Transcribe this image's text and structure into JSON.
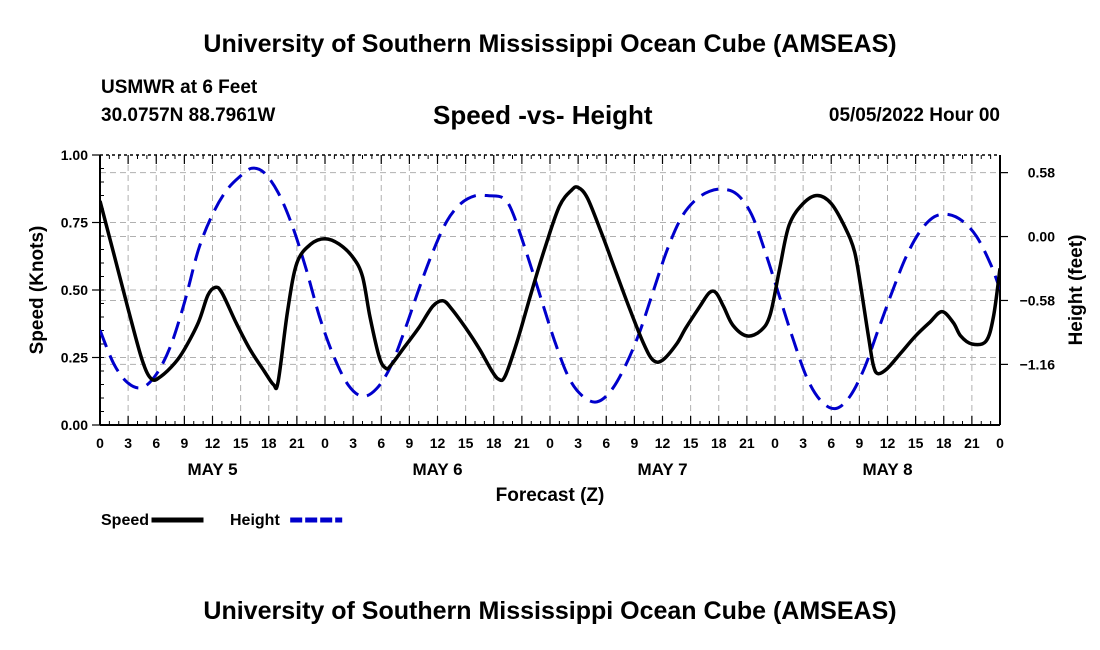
{
  "header": {
    "title": "University of Southern Mississippi Ocean Cube (AMSEAS)",
    "station": "USMWR at 6 Feet",
    "coords": "30.0757N  88.7961W",
    "subtitle": "Speed -vs- Height",
    "datetime": "05/05/2022 Hour 00"
  },
  "footer": {
    "title": "University of Southern Mississippi Ocean Cube (AMSEAS)"
  },
  "chart_data": {
    "type": "line",
    "xlabel": "Forecast (Z)",
    "ylabel": "Speed (Knots)",
    "y2label": "Height (feet)",
    "xlim": [
      0,
      96
    ],
    "ylim": [
      0,
      1
    ],
    "y2lim": [
      -1.71,
      0.74
    ],
    "x_tick_step": 3,
    "x_ticks": [
      "0",
      "3",
      "6",
      "9",
      "12",
      "15",
      "18",
      "21",
      "0",
      "3",
      "6",
      "9",
      "12",
      "15",
      "18",
      "21",
      "0",
      "3",
      "6",
      "9",
      "12",
      "15",
      "18",
      "21",
      "0",
      "3",
      "6",
      "9",
      "12",
      "15",
      "18",
      "21",
      "0"
    ],
    "day_labels": [
      {
        "label": "MAY 5",
        "x": 12
      },
      {
        "label": "MAY 6",
        "x": 36
      },
      {
        "label": "MAY 7",
        "x": 60
      },
      {
        "label": "MAY 8",
        "x": 84
      }
    ],
    "y_ticks": [
      "0.00",
      "0.25",
      "0.50",
      "0.75",
      "1.00"
    ],
    "y2_ticks": [
      {
        "label": "0.58",
        "value": 0.58
      },
      {
        "label": "0.00",
        "value": 0.0
      },
      {
        "label": "−0.58",
        "value": -0.58
      },
      {
        "label": "−1.16",
        "value": -1.16
      }
    ],
    "grid": true,
    "legend_position": "bottom-left",
    "series": [
      {
        "name": "Speed",
        "axis": "left",
        "color": "#000000",
        "dash": "solid",
        "points": [
          [
            0,
            0.83
          ],
          [
            1.5,
            0.63
          ],
          [
            3,
            0.43
          ],
          [
            4.5,
            0.24
          ],
          [
            5.5,
            0.17
          ],
          [
            6.5,
            0.18
          ],
          [
            8,
            0.23
          ],
          [
            9,
            0.28
          ],
          [
            10.5,
            0.38
          ],
          [
            11.5,
            0.48
          ],
          [
            12.3,
            0.51
          ],
          [
            13,
            0.49
          ],
          [
            14.5,
            0.38
          ],
          [
            16,
            0.28
          ],
          [
            17.5,
            0.2
          ],
          [
            18.5,
            0.15
          ],
          [
            19,
            0.16
          ],
          [
            20,
            0.42
          ],
          [
            21,
            0.6
          ],
          [
            22.5,
            0.67
          ],
          [
            24,
            0.69
          ],
          [
            25.5,
            0.67
          ],
          [
            27,
            0.62
          ],
          [
            28,
            0.55
          ],
          [
            28.8,
            0.4
          ],
          [
            29.8,
            0.25
          ],
          [
            30.5,
            0.21
          ],
          [
            31,
            0.22
          ],
          [
            32.5,
            0.29
          ],
          [
            34,
            0.36
          ],
          [
            35.5,
            0.44
          ],
          [
            36.6,
            0.46
          ],
          [
            37.5,
            0.43
          ],
          [
            39,
            0.36
          ],
          [
            40.5,
            0.28
          ],
          [
            41.8,
            0.2
          ],
          [
            42.5,
            0.17
          ],
          [
            43.2,
            0.18
          ],
          [
            44.5,
            0.31
          ],
          [
            46,
            0.49
          ],
          [
            47.5,
            0.66
          ],
          [
            49,
            0.81
          ],
          [
            50.3,
            0.87
          ],
          [
            51,
            0.88
          ],
          [
            52,
            0.84
          ],
          [
            53.5,
            0.71
          ],
          [
            55,
            0.57
          ],
          [
            56.5,
            0.43
          ],
          [
            58,
            0.3
          ],
          [
            59,
            0.24
          ],
          [
            60,
            0.24
          ],
          [
            61.5,
            0.3
          ],
          [
            62.5,
            0.36
          ],
          [
            64,
            0.44
          ],
          [
            65,
            0.49
          ],
          [
            65.7,
            0.49
          ],
          [
            66.5,
            0.44
          ],
          [
            67.5,
            0.37
          ],
          [
            69,
            0.33
          ],
          [
            70.5,
            0.35
          ],
          [
            71.5,
            0.41
          ],
          [
            72.5,
            0.58
          ],
          [
            73.5,
            0.74
          ],
          [
            75,
            0.82
          ],
          [
            76.5,
            0.85
          ],
          [
            78,
            0.82
          ],
          [
            79.5,
            0.73
          ],
          [
            80.5,
            0.64
          ],
          [
            81.2,
            0.5
          ],
          [
            82,
            0.32
          ],
          [
            82.5,
            0.22
          ],
          [
            83,
            0.19
          ],
          [
            84,
            0.21
          ],
          [
            85.5,
            0.27
          ],
          [
            87,
            0.33
          ],
          [
            88.5,
            0.38
          ],
          [
            89.8,
            0.42
          ],
          [
            91,
            0.38
          ],
          [
            91.8,
            0.33
          ],
          [
            93,
            0.3
          ],
          [
            94.5,
            0.31
          ],
          [
            95.3,
            0.4
          ],
          [
            96,
            0.58
          ]
        ]
      },
      {
        "name": "Height",
        "axis": "right",
        "color": "#0000cc",
        "dash": "dashed",
        "points": [
          [
            0,
            -0.85
          ],
          [
            1.5,
            -1.16
          ],
          [
            3,
            -1.33
          ],
          [
            4.5,
            -1.37
          ],
          [
            6,
            -1.25
          ],
          [
            7.5,
            -1.0
          ],
          [
            9,
            -0.6
          ],
          [
            10.5,
            -0.12
          ],
          [
            12,
            0.2
          ],
          [
            13.5,
            0.42
          ],
          [
            15,
            0.55
          ],
          [
            16.2,
            0.62
          ],
          [
            17.5,
            0.58
          ],
          [
            19,
            0.4
          ],
          [
            20.5,
            0.1
          ],
          [
            22,
            -0.3
          ],
          [
            23.5,
            -0.75
          ],
          [
            25,
            -1.1
          ],
          [
            26.5,
            -1.35
          ],
          [
            28,
            -1.45
          ],
          [
            29.5,
            -1.38
          ],
          [
            31,
            -1.18
          ],
          [
            32.5,
            -0.85
          ],
          [
            34,
            -0.48
          ],
          [
            35.5,
            -0.14
          ],
          [
            37,
            0.14
          ],
          [
            38.5,
            0.3
          ],
          [
            40,
            0.37
          ],
          [
            41.5,
            0.37
          ],
          [
            43,
            0.35
          ],
          [
            44,
            0.22
          ],
          [
            45.5,
            -0.15
          ],
          [
            47,
            -0.55
          ],
          [
            48.5,
            -0.95
          ],
          [
            50,
            -1.28
          ],
          [
            51.5,
            -1.45
          ],
          [
            53,
            -1.5
          ],
          [
            54.5,
            -1.4
          ],
          [
            56,
            -1.18
          ],
          [
            57.5,
            -0.88
          ],
          [
            59,
            -0.5
          ],
          [
            60.5,
            -0.12
          ],
          [
            62,
            0.17
          ],
          [
            63.5,
            0.33
          ],
          [
            65,
            0.41
          ],
          [
            66.5,
            0.43
          ],
          [
            68,
            0.38
          ],
          [
            69.5,
            0.2
          ],
          [
            71,
            -0.15
          ],
          [
            72.5,
            -0.55
          ],
          [
            74,
            -0.95
          ],
          [
            75.5,
            -1.3
          ],
          [
            77,
            -1.5
          ],
          [
            78.5,
            -1.56
          ],
          [
            80,
            -1.45
          ],
          [
            81.5,
            -1.2
          ],
          [
            83,
            -0.85
          ],
          [
            84.5,
            -0.5
          ],
          [
            86,
            -0.18
          ],
          [
            87.5,
            0.05
          ],
          [
            89,
            0.18
          ],
          [
            90.5,
            0.2
          ],
          [
            92,
            0.14
          ],
          [
            93.5,
            0.0
          ],
          [
            95,
            -0.25
          ],
          [
            96,
            -0.48
          ]
        ]
      }
    ]
  }
}
